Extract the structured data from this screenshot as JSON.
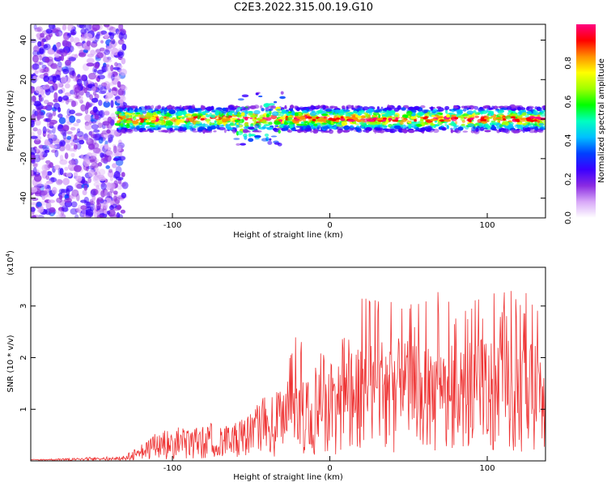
{
  "title": "C2E3.2022.315.00.19.G10",
  "chart_data": [
    {
      "type": "heatmap",
      "xlabel": "Height of straight line (km)",
      "ylabel": "Frequency (Hz)",
      "xlim": [
        -190,
        137
      ],
      "ylim": [
        -50,
        48
      ],
      "x_ticks": [
        -100,
        0,
        100
      ],
      "y_ticks": [
        -40,
        -20,
        0,
        20,
        40
      ],
      "colorbar": {
        "label": "Normalized spectral amplitude",
        "range": [
          0,
          1
        ],
        "ticks": [
          "0.0",
          "0.2",
          "0.4",
          "0.6",
          "0.8"
        ],
        "colormap": [
          "#ffffff",
          "#d8a8f8",
          "#8a2be2",
          "#3a00ff",
          "#0040ff",
          "#00c0ff",
          "#00ffc0",
          "#00ff00",
          "#a0ff00",
          "#ffff00",
          "#ff9000",
          "#ff0000",
          "#ff0080"
        ]
      },
      "features": {
        "noise_region_x": [
          -190,
          -130
        ],
        "band_center_hz": 0,
        "band_halfwidth_hz": 4
      }
    },
    {
      "type": "line",
      "xlabel": "Height of straight line (km)",
      "ylabel": "SNR (10 * v/v)",
      "exponent_label": "(x10",
      "exponent_power": "4",
      "exponent_close": ")",
      "xlim": [
        -190,
        137
      ],
      "ylim": [
        0,
        3.75
      ],
      "x_ticks": [
        -100,
        0,
        100
      ],
      "y_ticks": [
        1,
        2,
        3
      ],
      "line_color": "#ee3333",
      "series": [
        {
          "x": [
            -190,
            -130,
            -120,
            -110,
            -100,
            -90,
            -80,
            -70,
            -60,
            -50,
            -40,
            -30,
            -20,
            -10,
            0,
            10,
            20,
            30,
            40,
            50,
            60,
            70,
            80,
            90,
            100,
            110,
            120,
            130,
            137
          ],
          "y": [
            0.02,
            0.05,
            0.2,
            0.3,
            0.35,
            0.4,
            0.45,
            0.45,
            0.5,
            0.6,
            0.7,
            0.9,
            1.0,
            1.1,
            1.2,
            1.35,
            1.5,
            1.6,
            1.6,
            1.55,
            1.5,
            1.5,
            1.5,
            1.55,
            1.6,
            1.6,
            1.55,
            1.5,
            1.6
          ],
          "peak_y": [
            0.02,
            0.1,
            0.35,
            0.55,
            0.7,
            0.6,
            0.75,
            0.7,
            0.8,
            1.0,
            1.3,
            1.5,
            2.6,
            2.2,
            2.2,
            2.5,
            3.4,
            3.1,
            3.8,
            3.2,
            3.3,
            3.5,
            3.0,
            3.2,
            3.2,
            3.3,
            3.3,
            3.3,
            3.1
          ]
        }
      ]
    }
  ]
}
